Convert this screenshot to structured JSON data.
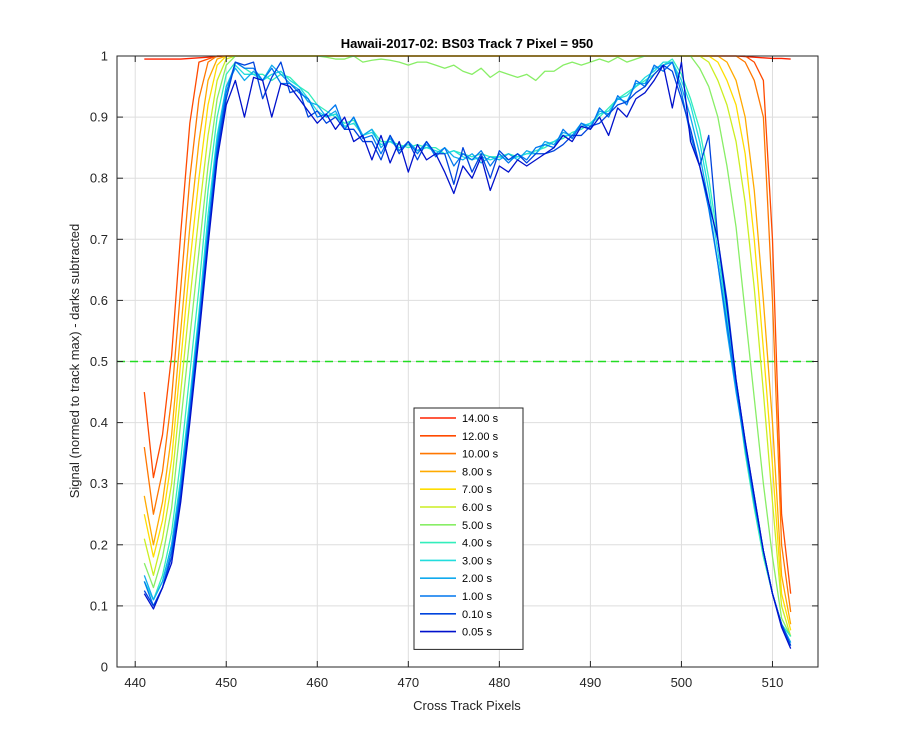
{
  "chart_data": {
    "type": "line",
    "title": "Hawaii-2017-02: BS03  Track 7 Pixel = 950",
    "xlabel": "Cross Track Pixels",
    "ylabel": "Signal (normed to track max) - darks subtracted",
    "xlim": [
      438,
      515
    ],
    "ylim": [
      0,
      1
    ],
    "xticks": [
      440,
      450,
      460,
      470,
      480,
      490,
      500,
      510
    ],
    "yticks": [
      0,
      0.1,
      0.2,
      0.3,
      0.4,
      0.5,
      0.6,
      0.7,
      0.8,
      0.9,
      1
    ],
    "grid": true,
    "legend_position": "bottom-center",
    "reference_line": {
      "y": 0.5,
      "color": "#22dd22",
      "style": "dashed"
    },
    "x": [
      441,
      442,
      443,
      444,
      445,
      446,
      447,
      448,
      449,
      450,
      451,
      452,
      453,
      454,
      455,
      456,
      457,
      458,
      459,
      460,
      461,
      462,
      463,
      464,
      465,
      466,
      467,
      468,
      469,
      470,
      471,
      472,
      473,
      474,
      475,
      476,
      477,
      478,
      479,
      480,
      481,
      482,
      483,
      484,
      485,
      486,
      487,
      488,
      489,
      490,
      491,
      492,
      493,
      494,
      495,
      496,
      497,
      498,
      499,
      500,
      501,
      502,
      503,
      504,
      505,
      506,
      507,
      508,
      509,
      510,
      511,
      512
    ],
    "series": [
      {
        "name": "14.00 s",
        "color": "#ff2200",
        "values": [
          0.995,
          0.995,
          0.995,
          0.995,
          0.995,
          0.996,
          0.997,
          0.998,
          0.999,
          1.0,
          1.0,
          1.0,
          1.0,
          1.0,
          1.0,
          1.0,
          1.0,
          1.0,
          1.0,
          1.0,
          1.0,
          1.0,
          1.0,
          1.0,
          1.0,
          1.0,
          1.0,
          1.0,
          1.0,
          1.0,
          1.0,
          1.0,
          1.0,
          1.0,
          1.0,
          1.0,
          1.0,
          1.0,
          1.0,
          1.0,
          1.0,
          1.0,
          1.0,
          1.0,
          1.0,
          1.0,
          1.0,
          1.0,
          1.0,
          1.0,
          1.0,
          1.0,
          1.0,
          1.0,
          1.0,
          1.0,
          1.0,
          1.0,
          1.0,
          1.0,
          1.0,
          1.0,
          1.0,
          1.0,
          1.0,
          1.0,
          0.999,
          0.998,
          0.997,
          0.996,
          0.996,
          0.995
        ]
      },
      {
        "name": "12.00 s",
        "color": "#ff4a00",
        "values": [
          0.45,
          0.31,
          0.38,
          0.51,
          0.71,
          0.89,
          0.99,
          0.995,
          1.0,
          1.0,
          1.0,
          1.0,
          1.0,
          1.0,
          1.0,
          1.0,
          1.0,
          1.0,
          1.0,
          1.0,
          1.0,
          1.0,
          1.0,
          1.0,
          1.0,
          1.0,
          1.0,
          1.0,
          1.0,
          1.0,
          1.0,
          1.0,
          1.0,
          1.0,
          1.0,
          1.0,
          1.0,
          1.0,
          1.0,
          1.0,
          1.0,
          1.0,
          1.0,
          1.0,
          1.0,
          1.0,
          1.0,
          1.0,
          1.0,
          1.0,
          1.0,
          1.0,
          1.0,
          1.0,
          1.0,
          1.0,
          1.0,
          1.0,
          1.0,
          1.0,
          1.0,
          1.0,
          1.0,
          1.0,
          1.0,
          1.0,
          1.0,
          0.99,
          0.96,
          0.7,
          0.25,
          0.12
        ]
      },
      {
        "name": "10.00 s",
        "color": "#ff7700",
        "values": [
          0.36,
          0.25,
          0.32,
          0.44,
          0.62,
          0.8,
          0.93,
          0.99,
          1.0,
          1.0,
          1.0,
          1.0,
          1.0,
          1.0,
          1.0,
          1.0,
          1.0,
          1.0,
          1.0,
          1.0,
          1.0,
          1.0,
          1.0,
          1.0,
          1.0,
          1.0,
          1.0,
          1.0,
          1.0,
          1.0,
          1.0,
          1.0,
          1.0,
          1.0,
          1.0,
          1.0,
          1.0,
          1.0,
          1.0,
          1.0,
          1.0,
          1.0,
          1.0,
          1.0,
          1.0,
          1.0,
          1.0,
          1.0,
          1.0,
          1.0,
          1.0,
          1.0,
          1.0,
          1.0,
          1.0,
          1.0,
          1.0,
          1.0,
          1.0,
          1.0,
          1.0,
          1.0,
          1.0,
          1.0,
          1.0,
          1.0,
          0.99,
          0.96,
          0.9,
          0.6,
          0.2,
          0.09
        ]
      },
      {
        "name": "8.00 s",
        "color": "#ffaa00",
        "values": [
          0.28,
          0.2,
          0.27,
          0.38,
          0.55,
          0.72,
          0.86,
          0.96,
          0.995,
          1.0,
          1.0,
          1.0,
          1.0,
          1.0,
          1.0,
          1.0,
          1.0,
          1.0,
          1.0,
          1.0,
          1.0,
          1.0,
          1.0,
          1.0,
          1.0,
          1.0,
          1.0,
          1.0,
          1.0,
          1.0,
          1.0,
          1.0,
          1.0,
          1.0,
          1.0,
          1.0,
          1.0,
          1.0,
          1.0,
          1.0,
          1.0,
          1.0,
          1.0,
          1.0,
          1.0,
          1.0,
          1.0,
          1.0,
          1.0,
          1.0,
          1.0,
          1.0,
          1.0,
          1.0,
          1.0,
          1.0,
          1.0,
          1.0,
          1.0,
          1.0,
          1.0,
          1.0,
          1.0,
          1.0,
          0.99,
          0.96,
          0.9,
          0.78,
          0.6,
          0.4,
          0.15,
          0.07
        ]
      },
      {
        "name": "7.00 s",
        "color": "#ffdd00",
        "values": [
          0.25,
          0.18,
          0.24,
          0.34,
          0.5,
          0.66,
          0.8,
          0.92,
          0.985,
          1.0,
          1.0,
          1.0,
          1.0,
          1.0,
          1.0,
          1.0,
          1.0,
          1.0,
          1.0,
          1.0,
          1.0,
          1.0,
          1.0,
          1.0,
          1.0,
          1.0,
          1.0,
          1.0,
          1.0,
          1.0,
          1.0,
          1.0,
          1.0,
          1.0,
          1.0,
          1.0,
          1.0,
          1.0,
          1.0,
          1.0,
          1.0,
          1.0,
          1.0,
          1.0,
          1.0,
          1.0,
          1.0,
          1.0,
          1.0,
          1.0,
          1.0,
          1.0,
          1.0,
          1.0,
          1.0,
          1.0,
          1.0,
          1.0,
          1.0,
          1.0,
          1.0,
          1.0,
          1.0,
          0.99,
          0.96,
          0.92,
          0.84,
          0.7,
          0.52,
          0.33,
          0.12,
          0.06
        ]
      },
      {
        "name": "6.00 s",
        "color": "#ccee22",
        "values": [
          0.21,
          0.15,
          0.21,
          0.3,
          0.45,
          0.6,
          0.74,
          0.87,
          0.96,
          0.995,
          1.0,
          1.0,
          1.0,
          1.0,
          1.0,
          1.0,
          1.0,
          1.0,
          1.0,
          1.0,
          1.0,
          1.0,
          1.0,
          1.0,
          1.0,
          1.0,
          1.0,
          1.0,
          1.0,
          1.0,
          1.0,
          1.0,
          1.0,
          1.0,
          1.0,
          1.0,
          1.0,
          1.0,
          1.0,
          1.0,
          1.0,
          1.0,
          1.0,
          1.0,
          1.0,
          1.0,
          1.0,
          1.0,
          1.0,
          1.0,
          1.0,
          1.0,
          1.0,
          1.0,
          1.0,
          1.0,
          1.0,
          1.0,
          1.0,
          1.0,
          1.0,
          1.0,
          0.99,
          0.96,
          0.92,
          0.86,
          0.76,
          0.62,
          0.45,
          0.27,
          0.1,
          0.05
        ]
      },
      {
        "name": "5.00 s",
        "color": "#88ee66",
        "values": [
          0.17,
          0.13,
          0.18,
          0.26,
          0.4,
          0.54,
          0.68,
          0.82,
          0.93,
          0.985,
          1.0,
          1.0,
          1.0,
          1.0,
          1.0,
          1.0,
          1.0,
          1.0,
          1.0,
          1.0,
          0.998,
          0.995,
          0.995,
          1.0,
          0.99,
          0.993,
          0.995,
          0.993,
          0.99,
          0.985,
          0.99,
          0.99,
          0.985,
          0.98,
          0.985,
          0.975,
          0.97,
          0.98,
          0.965,
          0.975,
          0.97,
          0.965,
          0.97,
          0.96,
          0.975,
          0.975,
          0.985,
          0.99,
          0.985,
          0.99,
          0.995,
          0.99,
          0.998,
          0.99,
          0.995,
          1.0,
          1.0,
          1.0,
          1.0,
          1.0,
          1.0,
          0.98,
          0.95,
          0.9,
          0.82,
          0.72,
          0.58,
          0.44,
          0.3,
          0.18,
          0.08,
          0.05
        ]
      },
      {
        "name": "4.00 s",
        "color": "#33eebb",
        "values": [
          0.14,
          0.11,
          0.15,
          0.22,
          0.34,
          0.48,
          0.62,
          0.78,
          0.9,
          0.97,
          0.99,
          0.98,
          0.97,
          0.97,
          0.96,
          0.97,
          0.965,
          0.95,
          0.94,
          0.92,
          0.91,
          0.9,
          0.89,
          0.895,
          0.87,
          0.88,
          0.86,
          0.86,
          0.855,
          0.85,
          0.855,
          0.85,
          0.85,
          0.84,
          0.845,
          0.84,
          0.835,
          0.84,
          0.835,
          0.835,
          0.84,
          0.835,
          0.84,
          0.845,
          0.85,
          0.86,
          0.865,
          0.875,
          0.88,
          0.89,
          0.9,
          0.915,
          0.93,
          0.94,
          0.95,
          0.96,
          0.97,
          0.985,
          0.995,
          0.97,
          0.93,
          0.88,
          0.8,
          0.7,
          0.58,
          0.46,
          0.35,
          0.26,
          0.18,
          0.12,
          0.07,
          0.05
        ]
      },
      {
        "name": "3.00 s",
        "color": "#22dddd",
        "values": [
          0.14,
          0.11,
          0.14,
          0.2,
          0.31,
          0.44,
          0.58,
          0.74,
          0.87,
          0.95,
          0.985,
          0.97,
          0.97,
          0.96,
          0.97,
          0.975,
          0.96,
          0.95,
          0.93,
          0.91,
          0.9,
          0.905,
          0.885,
          0.89,
          0.87,
          0.875,
          0.855,
          0.86,
          0.85,
          0.855,
          0.845,
          0.85,
          0.845,
          0.84,
          0.845,
          0.835,
          0.83,
          0.835,
          0.83,
          0.835,
          0.83,
          0.835,
          0.84,
          0.84,
          0.855,
          0.86,
          0.87,
          0.87,
          0.885,
          0.89,
          0.905,
          0.91,
          0.93,
          0.935,
          0.95,
          0.965,
          0.975,
          0.99,
          0.99,
          0.96,
          0.92,
          0.86,
          0.78,
          0.68,
          0.57,
          0.46,
          0.36,
          0.27,
          0.19,
          0.12,
          0.07,
          0.04
        ]
      },
      {
        "name": "2.00 s",
        "color": "#11aaee",
        "values": [
          0.15,
          0.11,
          0.14,
          0.2,
          0.3,
          0.43,
          0.57,
          0.72,
          0.86,
          0.95,
          0.98,
          0.96,
          0.975,
          0.96,
          0.985,
          0.97,
          0.955,
          0.945,
          0.925,
          0.92,
          0.9,
          0.91,
          0.88,
          0.9,
          0.87,
          0.88,
          0.85,
          0.865,
          0.845,
          0.86,
          0.845,
          0.855,
          0.84,
          0.85,
          0.835,
          0.83,
          0.84,
          0.825,
          0.835,
          0.83,
          0.84,
          0.83,
          0.845,
          0.84,
          0.86,
          0.855,
          0.875,
          0.87,
          0.89,
          0.885,
          0.91,
          0.905,
          0.93,
          0.925,
          0.955,
          0.955,
          0.98,
          0.985,
          0.99,
          0.95,
          0.9,
          0.84,
          0.76,
          0.66,
          0.55,
          0.45,
          0.36,
          0.27,
          0.19,
          0.12,
          0.07,
          0.04
        ]
      },
      {
        "name": "1.00 s",
        "color": "#0077ee",
        "values": [
          0.14,
          0.1,
          0.13,
          0.19,
          0.29,
          0.42,
          0.56,
          0.71,
          0.85,
          0.94,
          0.99,
          0.98,
          0.98,
          0.96,
          0.98,
          0.955,
          0.955,
          0.94,
          0.93,
          0.9,
          0.905,
          0.92,
          0.88,
          0.9,
          0.865,
          0.87,
          0.84,
          0.87,
          0.845,
          0.86,
          0.84,
          0.86,
          0.835,
          0.85,
          0.82,
          0.84,
          0.83,
          0.845,
          0.82,
          0.84,
          0.825,
          0.84,
          0.83,
          0.85,
          0.855,
          0.85,
          0.88,
          0.865,
          0.89,
          0.88,
          0.915,
          0.9,
          0.935,
          0.92,
          0.96,
          0.95,
          0.985,
          0.975,
          0.99,
          0.94,
          0.87,
          0.82,
          0.75,
          0.66,
          0.56,
          0.46,
          0.36,
          0.27,
          0.19,
          0.12,
          0.07,
          0.035
        ]
      },
      {
        "name": "0.10 s",
        "color": "#0044dd",
        "values": [
          0.125,
          0.1,
          0.13,
          0.18,
          0.28,
          0.41,
          0.55,
          0.7,
          0.84,
          0.93,
          0.99,
          0.985,
          0.99,
          0.93,
          0.965,
          0.99,
          0.94,
          0.945,
          0.9,
          0.91,
          0.89,
          0.9,
          0.88,
          0.88,
          0.86,
          0.86,
          0.83,
          0.87,
          0.84,
          0.86,
          0.83,
          0.86,
          0.84,
          0.84,
          0.79,
          0.85,
          0.81,
          0.84,
          0.8,
          0.845,
          0.83,
          0.84,
          0.825,
          0.84,
          0.84,
          0.845,
          0.855,
          0.87,
          0.87,
          0.885,
          0.89,
          0.905,
          0.92,
          0.925,
          0.94,
          0.95,
          0.97,
          0.985,
          0.975,
          0.93,
          0.88,
          0.82,
          0.87,
          0.7,
          0.6,
          0.47,
          0.37,
          0.28,
          0.19,
          0.12,
          0.07,
          0.035
        ]
      },
      {
        "name": "0.05 s",
        "color": "#0011cc",
        "values": [
          0.12,
          0.095,
          0.13,
          0.17,
          0.27,
          0.4,
          0.54,
          0.69,
          0.83,
          0.92,
          0.96,
          0.9,
          0.965,
          0.96,
          0.9,
          0.955,
          0.95,
          0.93,
          0.91,
          0.89,
          0.905,
          0.88,
          0.9,
          0.86,
          0.87,
          0.83,
          0.87,
          0.825,
          0.86,
          0.81,
          0.855,
          0.83,
          0.84,
          0.81,
          0.775,
          0.82,
          0.8,
          0.835,
          0.78,
          0.82,
          0.81,
          0.83,
          0.82,
          0.83,
          0.84,
          0.85,
          0.87,
          0.86,
          0.885,
          0.88,
          0.9,
          0.87,
          0.915,
          0.9,
          0.93,
          0.94,
          0.96,
          0.985,
          0.915,
          0.99,
          0.86,
          0.82,
          0.76,
          0.7,
          0.59,
          0.47,
          0.37,
          0.28,
          0.19,
          0.12,
          0.065,
          0.03
        ]
      }
    ]
  }
}
